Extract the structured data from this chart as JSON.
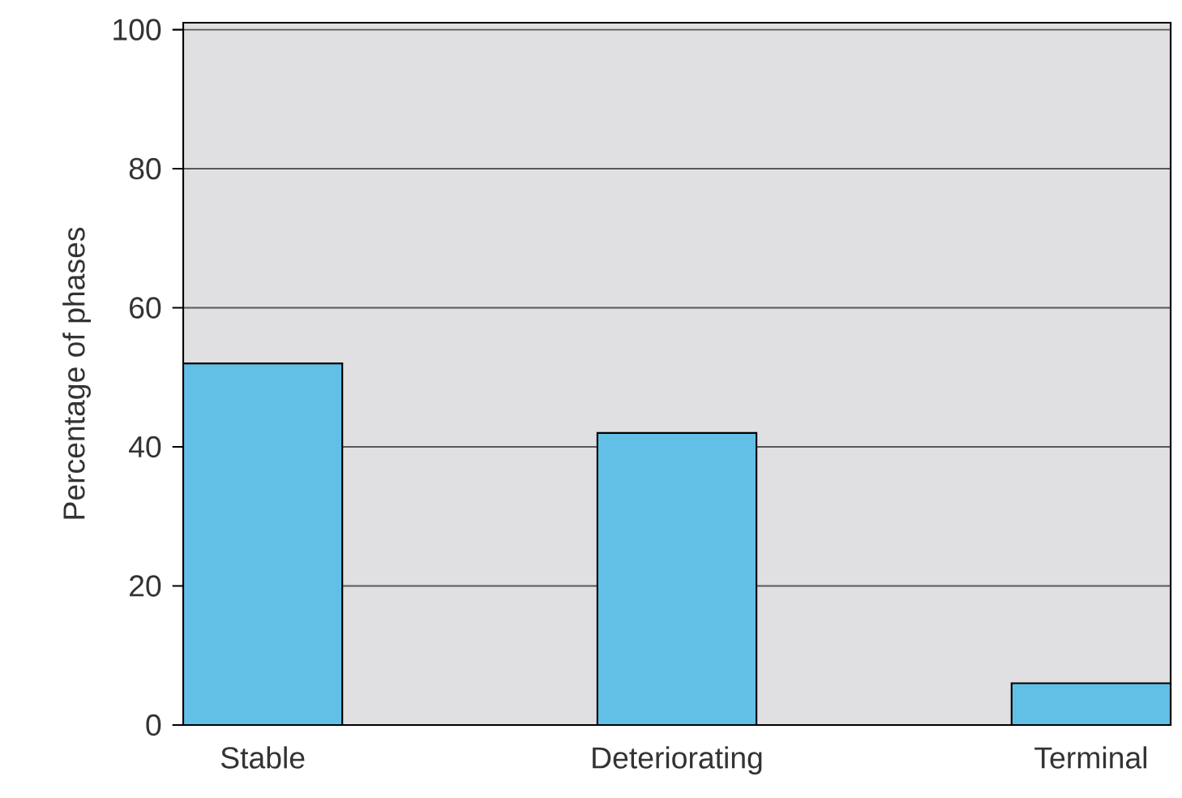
{
  "chart_data": {
    "type": "bar",
    "ylabel": "Percentage of phases",
    "categories": [
      "Stable",
      "Deteriorating",
      "Terminal"
    ],
    "values": [
      52,
      42,
      6
    ],
    "color": "#62bfe6",
    "ylim": [
      0,
      101
    ],
    "yticks": [
      0,
      20,
      40,
      60,
      80,
      100
    ],
    "grid": "y"
  }
}
